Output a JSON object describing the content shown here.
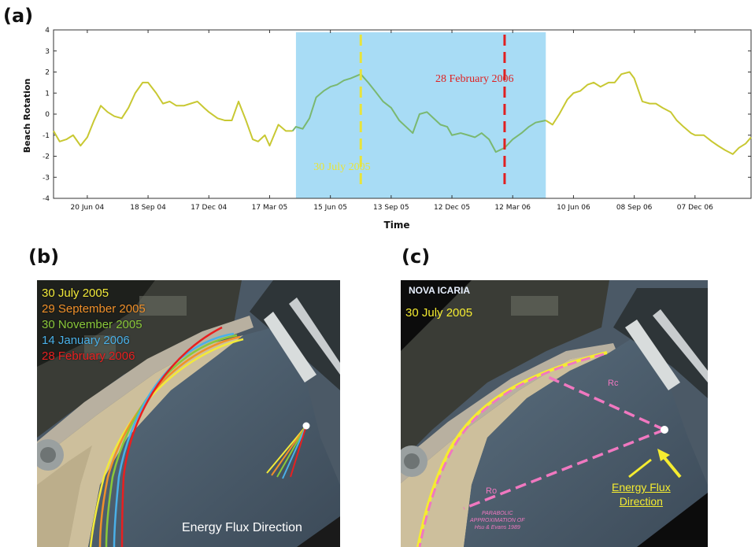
{
  "panels": {
    "a": "(a)",
    "b": "(b)",
    "c": "(c)"
  },
  "chart_data": {
    "type": "line",
    "xlabel": "Time",
    "ylabel": "Beach Rotation",
    "ylim": [
      -4,
      4
    ],
    "yticks": [
      -4,
      -3,
      -2,
      -1,
      0,
      1,
      2,
      3,
      4
    ],
    "xlim": [
      "2004-05-01",
      "2007-02-28"
    ],
    "xtick_labels": [
      "20 Jun 04",
      "18 Sep 04",
      "17 Dec 04",
      "17 Mar 05",
      "15 Jun 05",
      "13 Sep 05",
      "12 Dec 05",
      "12 Mar 06",
      "10 Jun 06",
      "08 Sep 06",
      "07 Dec 06"
    ],
    "xtick_dates": [
      "2004-06-20",
      "2004-09-18",
      "2004-12-17",
      "2005-03-17",
      "2005-06-15",
      "2005-09-13",
      "2005-12-12",
      "2006-03-12",
      "2006-06-10",
      "2006-09-08",
      "2006-12-07"
    ],
    "grid": false,
    "line_color": "#c8c832",
    "highlight": {
      "start": "2005-04-25",
      "end": "2006-04-30",
      "color": "#a8dcf5",
      "line_color": "#7ab870"
    },
    "markers": [
      {
        "date": "2005-07-30",
        "label": "30 July 2005",
        "color": "#e8e43a"
      },
      {
        "date": "2006-02-28",
        "label": "28 February 2006",
        "color": "#e02020"
      }
    ],
    "series": [
      {
        "x": [
          "2004-05-01",
          "2004-05-10",
          "2004-05-20",
          "2004-05-30",
          "2004-06-10",
          "2004-06-20",
          "2004-06-30",
          "2004-07-10",
          "2004-07-20",
          "2004-07-30",
          "2004-08-10",
          "2004-08-20",
          "2004-08-30",
          "2004-09-10",
          "2004-09-18",
          "2004-09-30",
          "2004-10-10",
          "2004-10-20",
          "2004-10-30",
          "2004-11-10",
          "2004-11-20",
          "2004-11-30",
          "2004-12-10",
          "2004-12-17",
          "2004-12-30",
          "2005-01-10",
          "2005-01-20",
          "2005-01-30",
          "2005-02-10",
          "2005-02-20",
          "2005-02-28",
          "2005-03-10",
          "2005-03-17",
          "2005-03-30",
          "2005-04-10",
          "2005-04-20",
          "2005-04-25",
          "2005-05-05",
          "2005-05-15",
          "2005-05-25",
          "2005-06-05",
          "2005-06-15",
          "2005-06-25",
          "2005-07-05",
          "2005-07-15",
          "2005-07-30",
          "2005-08-10",
          "2005-08-20",
          "2005-09-01",
          "2005-09-13",
          "2005-09-25",
          "2005-10-05",
          "2005-10-15",
          "2005-10-25",
          "2005-11-05",
          "2005-11-15",
          "2005-11-25",
          "2005-12-05",
          "2005-12-12",
          "2005-12-25",
          "2006-01-05",
          "2006-01-15",
          "2006-01-25",
          "2006-02-05",
          "2006-02-15",
          "2006-02-28",
          "2006-03-12",
          "2006-03-25",
          "2006-04-05",
          "2006-04-15",
          "2006-04-30",
          "2006-05-10",
          "2006-05-20",
          "2006-06-01",
          "2006-06-10",
          "2006-06-20",
          "2006-07-01",
          "2006-07-10",
          "2006-07-20",
          "2006-08-01",
          "2006-08-10",
          "2006-08-20",
          "2006-09-01",
          "2006-09-08",
          "2006-09-20",
          "2006-10-01",
          "2006-10-10",
          "2006-10-20",
          "2006-11-01",
          "2006-11-10",
          "2006-11-20",
          "2006-12-01",
          "2006-12-07",
          "2006-12-20",
          "2007-01-01",
          "2007-01-10",
          "2007-01-20",
          "2007-02-01",
          "2007-02-10",
          "2007-02-20",
          "2007-02-28"
        ],
        "y": [
          -0.8,
          -1.3,
          -1.2,
          -1.0,
          -1.5,
          -1.1,
          -0.3,
          0.4,
          0.1,
          -0.1,
          -0.2,
          0.3,
          1.0,
          1.5,
          1.5,
          1.0,
          0.5,
          0.6,
          0.4,
          0.4,
          0.5,
          0.6,
          0.3,
          0.1,
          -0.2,
          -0.3,
          -0.3,
          0.6,
          -0.3,
          -1.2,
          -1.3,
          -1.0,
          -1.5,
          -0.5,
          -0.8,
          -0.8,
          -0.6,
          -0.7,
          -0.2,
          0.8,
          1.1,
          1.3,
          1.4,
          1.6,
          1.7,
          1.9,
          1.5,
          1.1,
          0.6,
          0.3,
          -0.3,
          -0.6,
          -0.9,
          0.0,
          0.1,
          -0.2,
          -0.5,
          -0.6,
          -1.0,
          -0.9,
          -1.0,
          -1.1,
          -0.9,
          -1.2,
          -1.8,
          -1.6,
          -1.2,
          -0.9,
          -0.6,
          -0.4,
          -0.3,
          -0.5,
          0.0,
          0.7,
          1.0,
          1.1,
          1.4,
          1.5,
          1.3,
          1.5,
          1.5,
          1.9,
          2.0,
          1.7,
          0.6,
          0.5,
          0.5,
          0.3,
          0.1,
          -0.3,
          -0.6,
          -0.9,
          -1.0,
          -1.0,
          -1.3,
          -1.5,
          -1.7,
          -1.9,
          -1.6,
          -1.4,
          -1.1
        ]
      }
    ]
  },
  "panel_b": {
    "legend": [
      {
        "text": "30 July 2005",
        "color": "#f2ea3a"
      },
      {
        "text": "29 September 2005",
        "color": "#f0902a"
      },
      {
        "text": "30 November 2005",
        "color": "#8ac83a"
      },
      {
        "text": "14 January 2006",
        "color": "#4ab0e8"
      },
      {
        "text": "28 February 2006",
        "color": "#e82020"
      }
    ],
    "caption": "Energy Flux Direction"
  },
  "panel_c": {
    "site": "NOVA ICARIA",
    "date": "30 July 2005",
    "rc_label": "Rc",
    "ro_label": "Ro",
    "flux_line1": "Energy Flux",
    "flux_line2": "Direction",
    "parabolic_line1": "PARABOLIC",
    "parabolic_line2": "APPROXIMATION OF",
    "parabolic_line3": "Hsu & Evans 1989",
    "curve_color": "#f5ec30",
    "dash_color": "#f078c0"
  }
}
